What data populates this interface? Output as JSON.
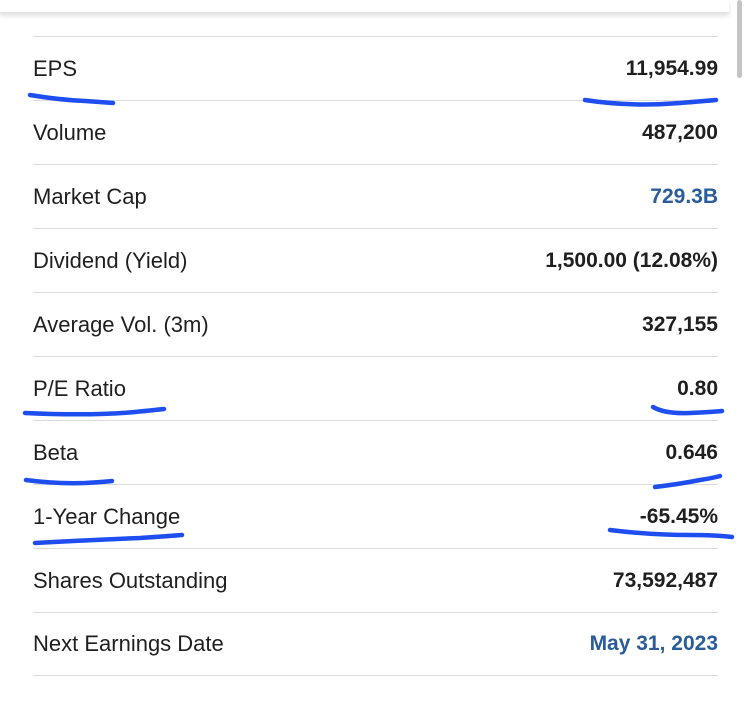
{
  "stats": [
    {
      "label": "EPS",
      "value": "11,954.99"
    },
    {
      "label": "Volume",
      "value": "487,200"
    },
    {
      "label": "Market Cap",
      "value": "729.3B"
    },
    {
      "label": "Dividend (Yield)",
      "value": "1,500.00 (12.08%)"
    },
    {
      "label": "Average Vol. (3m)",
      "value": "327,155"
    },
    {
      "label": "P/E Ratio",
      "value": "0.80"
    },
    {
      "label": "Beta",
      "value": "0.646"
    },
    {
      "label": "1-Year Change",
      "value": "-65.45%"
    },
    {
      "label": "Shares Outstanding",
      "value": "73,592,487"
    },
    {
      "label": "Next Earnings Date",
      "value": "May 31, 2023"
    }
  ],
  "colors": {
    "link_value": "#2a5b9a",
    "text": "#1f1f1f",
    "annotation_ink": "#1f4ef0",
    "divider": "#dcdcdc"
  },
  "annotations": {
    "underlined_rows": [
      "EPS",
      "P/E Ratio",
      "Beta",
      "1-Year Change"
    ]
  }
}
